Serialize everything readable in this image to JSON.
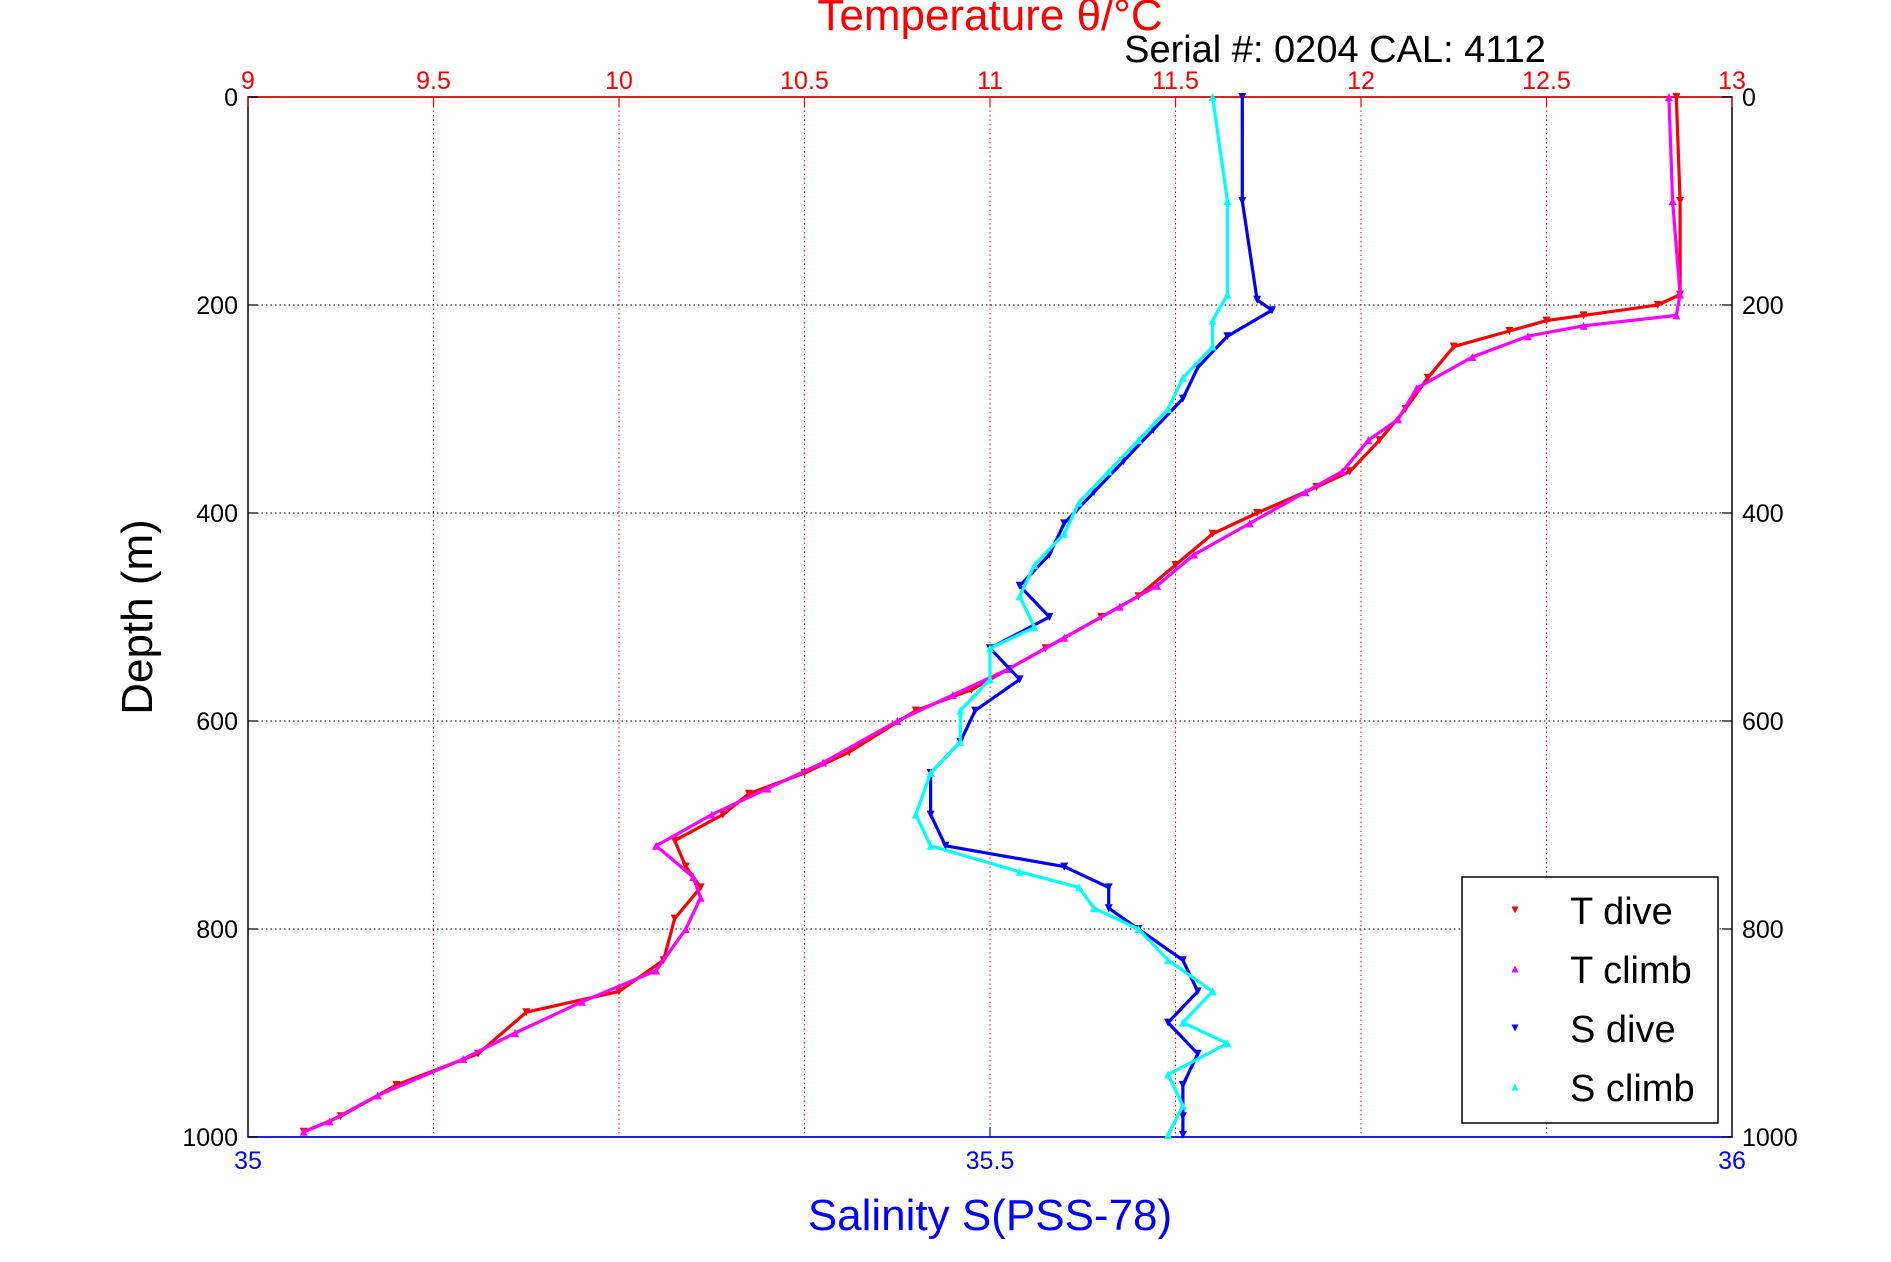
{
  "chart_data": {
    "type": "line",
    "title": "Temperature θ/°C",
    "subtitle": "Serial #: 0204  CAL: 4112",
    "xlabel": "Salinity S(PSS-78)",
    "ylabel": "Depth (m)",
    "top_axis": {
      "label": "Temperature θ/°C",
      "range": [
        9,
        13
      ],
      "ticks": [
        "9",
        "9.5",
        "10",
        "10.5",
        "11",
        "11.5",
        "12",
        "12.5",
        "13"
      ],
      "color": "#ff0000"
    },
    "bottom_axis": {
      "label": "Salinity S(PSS-78)",
      "range": [
        35,
        36
      ],
      "ticks": [
        "35",
        "35.5",
        "36"
      ],
      "color": "#0000ff"
    },
    "y_axis": {
      "label": "Depth (m)",
      "range": [
        0,
        1000
      ],
      "reversed": true,
      "ticks": [
        "0",
        "200",
        "400",
        "600",
        "800",
        "1000"
      ]
    },
    "grid": true,
    "legend_position": "bottom-right",
    "series": [
      {
        "name": "T dive",
        "axis": "temperature",
        "color": "#ff0000",
        "marker": "triangle-down",
        "points": [
          [
            12.85,
            0
          ],
          [
            12.86,
            100
          ],
          [
            12.86,
            190
          ],
          [
            12.8,
            200
          ],
          [
            12.6,
            210
          ],
          [
            12.5,
            215
          ],
          [
            12.4,
            225
          ],
          [
            12.25,
            240
          ],
          [
            12.18,
            270
          ],
          [
            12.12,
            300
          ],
          [
            12.05,
            330
          ],
          [
            11.97,
            360
          ],
          [
            11.88,
            375
          ],
          [
            11.72,
            400
          ],
          [
            11.6,
            420
          ],
          [
            11.5,
            450
          ],
          [
            11.4,
            480
          ],
          [
            11.3,
            500
          ],
          [
            11.15,
            530
          ],
          [
            11.05,
            550
          ],
          [
            10.95,
            570
          ],
          [
            10.8,
            590
          ],
          [
            10.62,
            630
          ],
          [
            10.5,
            650
          ],
          [
            10.35,
            670
          ],
          [
            10.28,
            690
          ],
          [
            10.15,
            715
          ],
          [
            10.18,
            740
          ],
          [
            10.22,
            760
          ],
          [
            10.15,
            790
          ],
          [
            10.12,
            830
          ],
          [
            10.0,
            860
          ],
          [
            9.75,
            880
          ],
          [
            9.62,
            920
          ],
          [
            9.4,
            950
          ],
          [
            9.25,
            980
          ],
          [
            9.15,
            995
          ]
        ]
      },
      {
        "name": "T climb",
        "axis": "temperature",
        "color": "#ff00ff",
        "marker": "triangle-up",
        "points": [
          [
            12.83,
            0
          ],
          [
            12.84,
            100
          ],
          [
            12.86,
            190
          ],
          [
            12.85,
            210
          ],
          [
            12.6,
            220
          ],
          [
            12.45,
            230
          ],
          [
            12.3,
            250
          ],
          [
            12.15,
            280
          ],
          [
            12.1,
            310
          ],
          [
            12.02,
            330
          ],
          [
            11.95,
            360
          ],
          [
            11.85,
            380
          ],
          [
            11.7,
            410
          ],
          [
            11.55,
            440
          ],
          [
            11.45,
            470
          ],
          [
            11.35,
            490
          ],
          [
            11.2,
            520
          ],
          [
            11.05,
            550
          ],
          [
            10.9,
            575
          ],
          [
            10.75,
            600
          ],
          [
            10.55,
            640
          ],
          [
            10.4,
            665
          ],
          [
            10.25,
            690
          ],
          [
            10.1,
            720
          ],
          [
            10.2,
            750
          ],
          [
            10.22,
            770
          ],
          [
            10.18,
            800
          ],
          [
            10.1,
            840
          ],
          [
            9.9,
            870
          ],
          [
            9.72,
            900
          ],
          [
            9.58,
            925
          ],
          [
            9.35,
            960
          ],
          [
            9.22,
            985
          ],
          [
            9.15,
            995
          ]
        ]
      },
      {
        "name": "S dive",
        "axis": "salinity",
        "color": "#0000ff",
        "marker": "triangle-down",
        "points": [
          [
            35.67,
            0
          ],
          [
            35.67,
            100
          ],
          [
            35.68,
            195
          ],
          [
            35.69,
            205
          ],
          [
            35.66,
            230
          ],
          [
            35.64,
            260
          ],
          [
            35.63,
            290
          ],
          [
            35.61,
            320
          ],
          [
            35.59,
            350
          ],
          [
            35.57,
            380
          ],
          [
            35.55,
            410
          ],
          [
            35.54,
            440
          ],
          [
            35.52,
            470
          ],
          [
            35.54,
            500
          ],
          [
            35.5,
            530
          ],
          [
            35.52,
            560
          ],
          [
            35.49,
            590
          ],
          [
            35.48,
            620
          ],
          [
            35.46,
            650
          ],
          [
            35.46,
            690
          ],
          [
            35.47,
            720
          ],
          [
            35.55,
            740
          ],
          [
            35.58,
            760
          ],
          [
            35.58,
            780
          ],
          [
            35.6,
            800
          ],
          [
            35.63,
            830
          ],
          [
            35.64,
            860
          ],
          [
            35.62,
            890
          ],
          [
            35.64,
            920
          ],
          [
            35.63,
            950
          ],
          [
            35.63,
            980
          ],
          [
            35.63,
            998
          ]
        ]
      },
      {
        "name": "S climb",
        "axis": "salinity",
        "color": "#00ffff",
        "marker": "triangle-up",
        "points": [
          [
            35.65,
            0
          ],
          [
            35.66,
            100
          ],
          [
            35.66,
            190
          ],
          [
            35.65,
            215
          ],
          [
            35.65,
            240
          ],
          [
            35.63,
            270
          ],
          [
            35.62,
            300
          ],
          [
            35.6,
            330
          ],
          [
            35.58,
            360
          ],
          [
            35.56,
            390
          ],
          [
            35.55,
            420
          ],
          [
            35.53,
            450
          ],
          [
            35.52,
            480
          ],
          [
            35.53,
            510
          ],
          [
            35.5,
            530
          ],
          [
            35.5,
            560
          ],
          [
            35.48,
            590
          ],
          [
            35.48,
            620
          ],
          [
            35.46,
            650
          ],
          [
            35.45,
            690
          ],
          [
            35.46,
            720
          ],
          [
            35.52,
            745
          ],
          [
            35.56,
            760
          ],
          [
            35.57,
            780
          ],
          [
            35.6,
            800
          ],
          [
            35.62,
            830
          ],
          [
            35.65,
            860
          ],
          [
            35.63,
            890
          ],
          [
            35.66,
            910
          ],
          [
            35.62,
            940
          ],
          [
            35.63,
            970
          ],
          [
            35.62,
            998
          ]
        ]
      }
    ]
  }
}
